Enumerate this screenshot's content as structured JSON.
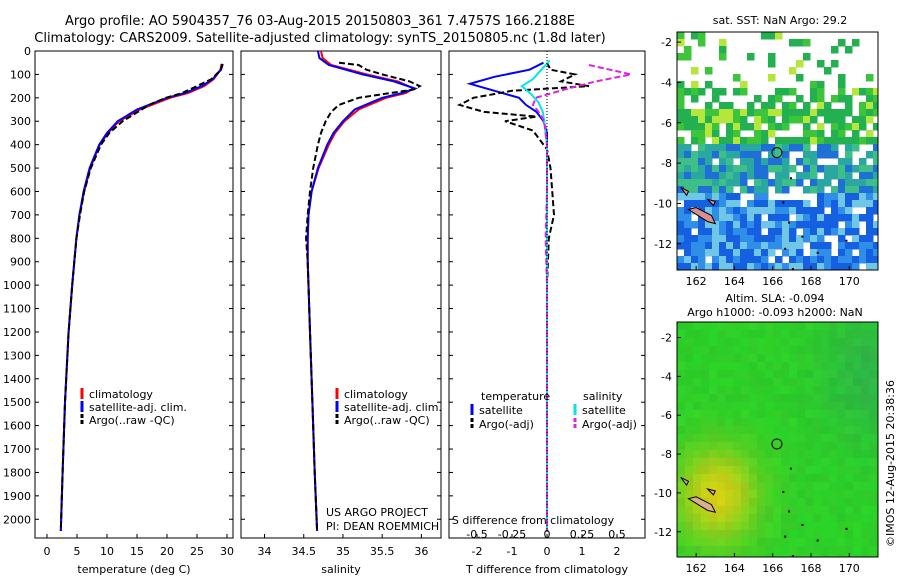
{
  "title": {
    "line1": "Argo profile: AO 5904357_76 03-Aug-2015 20150803_361 7.4757S 166.2188E",
    "line2": "Climatology: CARS2009. Satellite-adjusted climatology: synTS_20150805.nc (1.8d later)"
  },
  "colors": {
    "climatology": "#ff0000",
    "satellite": "#0000ff",
    "argo": "#000000",
    "t_sat": "#0000ff",
    "s_sat": "#00e5ee",
    "s_argo": "#e020e0"
  },
  "chart_data": [
    {
      "type": "line",
      "name": "temperature-panel",
      "xlabel": "temperature (deg C)",
      "xlim": [
        -2,
        31
      ],
      "xticks": [
        0,
        5,
        10,
        15,
        20,
        25,
        30
      ],
      "ylim": [
        2080,
        0
      ],
      "yticks": [
        0,
        100,
        200,
        300,
        400,
        500,
        600,
        700,
        800,
        900,
        1000,
        1100,
        1200,
        1300,
        1400,
        1500,
        1600,
        1700,
        1800,
        1900,
        2000
      ],
      "legend": [
        "climatology",
        "satellite-adj. clim.",
        "Argo(..raw -QC)"
      ],
      "series": [
        {
          "name": "climatology",
          "color": "#ff0000",
          "style": "solid",
          "depth": [
            55,
            80,
            120,
            150,
            180,
            200,
            250,
            300,
            350,
            400,
            500,
            600,
            700,
            800,
            1000,
            1200,
            1500,
            1800,
            2050
          ],
          "values": [
            29.1,
            28.9,
            27.8,
            26.2,
            23.5,
            20.5,
            15.5,
            12.0,
            10.2,
            8.8,
            7.2,
            6.2,
            5.4,
            4.9,
            4.2,
            3.6,
            3.0,
            2.6,
            2.3
          ]
        },
        {
          "name": "satellite-adj. clim.",
          "color": "#0000ff",
          "style": "solid",
          "depth": [
            55,
            80,
            120,
            150,
            180,
            200,
            250,
            300,
            350,
            400,
            500,
            600,
            700,
            800,
            1000,
            1200,
            1500,
            1800,
            2050
          ],
          "values": [
            29.3,
            29.0,
            27.6,
            25.8,
            23.0,
            20.0,
            15.0,
            11.8,
            10.0,
            8.7,
            7.1,
            6.1,
            5.4,
            4.9,
            4.2,
            3.6,
            3.0,
            2.6,
            2.3
          ]
        },
        {
          "name": "Argo(..raw -QC)",
          "color": "#000000",
          "style": "dashed",
          "depth": [
            55,
            80,
            120,
            150,
            180,
            200,
            230,
            250,
            300,
            350,
            400,
            500,
            600,
            700,
            800,
            1000,
            1200,
            1500,
            1800,
            2050
          ],
          "values": [
            29.2,
            29.0,
            27.4,
            25.0,
            22.5,
            19.8,
            17.0,
            15.8,
            12.6,
            10.4,
            9.0,
            7.3,
            6.2,
            5.5,
            4.9,
            4.2,
            3.6,
            3.0,
            2.6,
            2.3
          ]
        }
      ]
    },
    {
      "type": "line",
      "name": "salinity-panel",
      "xlabel": "salinity",
      "xlim": [
        33.7,
        36.25
      ],
      "xticks": [
        34,
        34.5,
        35,
        35.5,
        36
      ],
      "xticklabels": [
        "34",
        "34.5",
        "35",
        "35.5",
        "36"
      ],
      "ylim": [
        2080,
        0
      ],
      "legend": [
        "climatology",
        "satellite-adj. clim.",
        "Argo(..raw -QC)"
      ],
      "annotation": [
        "US ARGO PROJECT",
        "PI: DEAN ROEMMICH"
      ],
      "series": [
        {
          "name": "climatology",
          "color": "#ff0000",
          "style": "solid",
          "depth": [
            0,
            30,
            60,
            100,
            130,
            160,
            180,
            200,
            250,
            300,
            350,
            400,
            500,
            600,
            700,
            800,
            900,
            1000,
            1200,
            1500,
            1800,
            2050
          ],
          "values": [
            34.72,
            34.74,
            34.85,
            35.3,
            35.7,
            35.9,
            35.8,
            35.55,
            35.2,
            35.02,
            34.9,
            34.82,
            34.69,
            34.6,
            34.56,
            34.55,
            34.55,
            34.56,
            34.58,
            34.61,
            34.64,
            34.67
          ]
        },
        {
          "name": "satellite-adj. clim.",
          "color": "#0000ff",
          "style": "solid",
          "depth": [
            0,
            30,
            60,
            100,
            130,
            160,
            180,
            200,
            250,
            300,
            350,
            400,
            500,
            600,
            700,
            800,
            900,
            1000,
            1200,
            1500,
            1800,
            2050
          ],
          "values": [
            34.68,
            34.7,
            34.82,
            35.25,
            35.65,
            35.92,
            35.75,
            35.5,
            35.15,
            35.0,
            34.88,
            34.8,
            34.68,
            34.6,
            34.56,
            34.55,
            34.55,
            34.56,
            34.58,
            34.61,
            34.64,
            34.67
          ]
        },
        {
          "name": "Argo(..raw -QC)",
          "color": "#000000",
          "style": "dashed",
          "depth": [
            50,
            60,
            80,
            100,
            130,
            150,
            165,
            180,
            200,
            230,
            260,
            300,
            350,
            400,
            500,
            600,
            700,
            800,
            900,
            1000,
            1200,
            1500,
            1800,
            2050
          ],
          "values": [
            34.95,
            35.2,
            35.3,
            35.5,
            35.85,
            35.98,
            35.9,
            35.6,
            35.2,
            34.95,
            34.85,
            34.78,
            34.72,
            34.68,
            34.62,
            34.58,
            34.55,
            34.53,
            34.55,
            34.56,
            34.58,
            34.61,
            34.64,
            34.67
          ]
        }
      ]
    },
    {
      "type": "line",
      "name": "difference-panel",
      "xlabel": "T difference from climatology",
      "xlabel_top": "S difference from climatology",
      "xlim": [
        -2.8,
        2.8
      ],
      "xticks": [
        -2,
        -1,
        0,
        1,
        2
      ],
      "top_xticks": [
        -0.5,
        -0.25,
        0,
        0.25,
        0.5
      ],
      "top_xticklabels": [
        "-0.5",
        "-0.25",
        "0",
        "0.25",
        "0.5"
      ],
      "s_scale_per_t": 0.25,
      "ylim": [
        2080,
        0
      ],
      "legend_headers": [
        "temperature",
        "salinity"
      ],
      "legend": [
        "satellite",
        "Argo(-adj)",
        "satellite",
        "Argo(-adj)"
      ],
      "series": [
        {
          "name": "T satellite",
          "color": "#0000ff",
          "style": "solid",
          "axis": "T",
          "depth": [
            50,
            80,
            110,
            140,
            170,
            200,
            230,
            260,
            300,
            350,
            400,
            500,
            700,
            1000,
            1500,
            2050
          ],
          "values": [
            -0.1,
            -0.5,
            -1.5,
            -2.2,
            -1.5,
            -0.8,
            -0.6,
            -0.3,
            -0.1,
            0.0,
            0.0,
            0.0,
            0.0,
            0.0,
            0.0,
            0.0
          ]
        },
        {
          "name": "T Argo(-adj)",
          "color": "#000000",
          "style": "dashed",
          "axis": "T",
          "depth": [
            50,
            80,
            100,
            130,
            150,
            170,
            200,
            230,
            260,
            280,
            300,
            340,
            380,
            420,
            500,
            700,
            800,
            1000,
            1500,
            2050
          ],
          "values": [
            0.0,
            0.1,
            0.8,
            0.4,
            1.2,
            -1.0,
            -2.1,
            -2.5,
            -1.8,
            -0.3,
            -1.2,
            -0.4,
            -0.2,
            0.0,
            0.1,
            0.2,
            0.05,
            0.0,
            0.0,
            0.0
          ]
        },
        {
          "name": "S satellite",
          "color": "#00e5ee",
          "style": "solid",
          "axis": "S",
          "depth": [
            40,
            80,
            120,
            150,
            180,
            220,
            260,
            300,
            400,
            500,
            1000,
            2050
          ],
          "values": [
            0.02,
            -0.04,
            -0.1,
            -0.18,
            -0.12,
            -0.06,
            -0.03,
            -0.02,
            0.0,
            0.0,
            0.0,
            0.0
          ]
        },
        {
          "name": "S Argo(-adj)",
          "color": "#e020e0",
          "style": "dashed",
          "axis": "S",
          "depth": [
            60,
            80,
            100,
            130,
            160,
            200,
            230,
            260,
            300,
            400,
            600,
            800,
            1000,
            2050
          ],
          "values": [
            0.3,
            0.45,
            0.6,
            0.35,
            0.15,
            -0.08,
            -0.1,
            -0.06,
            -0.02,
            0.0,
            0.0,
            -0.01,
            0.0,
            0.0
          ]
        }
      ]
    },
    {
      "type": "heatmap",
      "name": "sst-map",
      "title": "sat. SST: NaN Argo: 29.2",
      "xlim": [
        161,
        171.5
      ],
      "ylim": [
        -13.3,
        -1.5
      ],
      "xticks": [
        162,
        164,
        166,
        168,
        170
      ],
      "yticks": [
        -2,
        -4,
        -6,
        -8,
        -10,
        -12
      ],
      "marker": {
        "lon": 166.22,
        "lat": -7.48
      }
    },
    {
      "type": "heatmap",
      "name": "sla-map",
      "title": [
        "Altim. SLA: -0.094",
        "Argo h1000: -0.093 h2000: NaN"
      ],
      "xlim": [
        161,
        171.5
      ],
      "ylim": [
        -13.3,
        -1.2
      ],
      "xticks": [
        162,
        164,
        166,
        168,
        170
      ],
      "yticks": [
        -2,
        -4,
        -6,
        -8,
        -10,
        -12
      ],
      "marker": {
        "lon": 166.22,
        "lat": -7.48
      },
      "side_label": "©IMOS 12-Aug-2015 20:38:36"
    }
  ]
}
